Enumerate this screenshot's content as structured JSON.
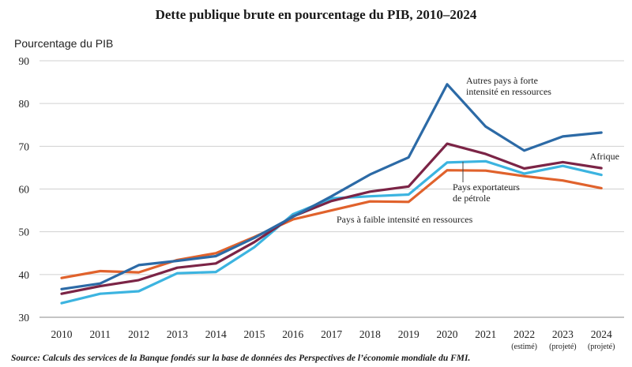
{
  "chart_data": {
    "type": "line",
    "title": "Dette publique brute en pourcentage du PIB, 2010–2024",
    "ylabel": "Pourcentage du PIB",
    "xlabel": "",
    "ylim": [
      30,
      90
    ],
    "yticks": [
      30,
      40,
      50,
      60,
      70,
      80,
      90
    ],
    "grid": true,
    "categories": [
      "2010",
      "2011",
      "2012",
      "2013",
      "2014",
      "2015",
      "2016",
      "2017",
      "2018",
      "2019",
      "2020",
      "2021",
      "2022",
      "2023",
      "2024"
    ],
    "category_sublabels": [
      "",
      "",
      "",
      "",
      "",
      "",
      "",
      "",
      "",
      "",
      "",
      "",
      "(estimé)",
      "(projeté)",
      "(projeté)"
    ],
    "series": [
      {
        "name": "Autres pays à forte intensité en ressources",
        "color": "#2c6aa6",
        "values": [
          36.6,
          37.9,
          42.2,
          43.2,
          44.3,
          48.6,
          53.5,
          58.3,
          63.4,
          67.4,
          84.5,
          74.6,
          69.0,
          72.3,
          73.2
        ]
      },
      {
        "name": "Afrique",
        "color": "#7b2446",
        "values": [
          35.5,
          37.3,
          38.7,
          41.6,
          42.6,
          47.6,
          53.6,
          57.2,
          59.4,
          60.6,
          70.6,
          68.2,
          64.8,
          66.3,
          64.9
        ]
      },
      {
        "name": "Pays exportateurs de pétrole",
        "color": "#3cb4e0",
        "values": [
          33.3,
          35.5,
          36.1,
          40.3,
          40.6,
          46.4,
          54.1,
          57.8,
          58.3,
          58.7,
          66.2,
          66.5,
          63.6,
          65.4,
          63.3
        ]
      },
      {
        "name": "Pays à faible intensité en ressources",
        "color": "#e0622c",
        "values": [
          39.2,
          40.8,
          40.5,
          43.4,
          45.0,
          48.8,
          52.9,
          55.0,
          57.1,
          57.0,
          64.4,
          64.3,
          63.0,
          62.0,
          60.2
        ]
      }
    ],
    "annotations": [
      {
        "series": 0,
        "lines": [
          "Autres pays à forte",
          "intensité en ressources"
        ]
      },
      {
        "series": 1,
        "lines": [
          "Afrique"
        ]
      },
      {
        "series": 2,
        "lines": [
          "Pays exportateurs",
          "de pétrole"
        ]
      },
      {
        "series": 3,
        "lines": [
          "Pays à faible intensité en ressources"
        ]
      }
    ]
  },
  "source": "Source: Calculs des services de la Banque fondés sur la base de données des Perspectives de l’économie mondiale du FMI."
}
